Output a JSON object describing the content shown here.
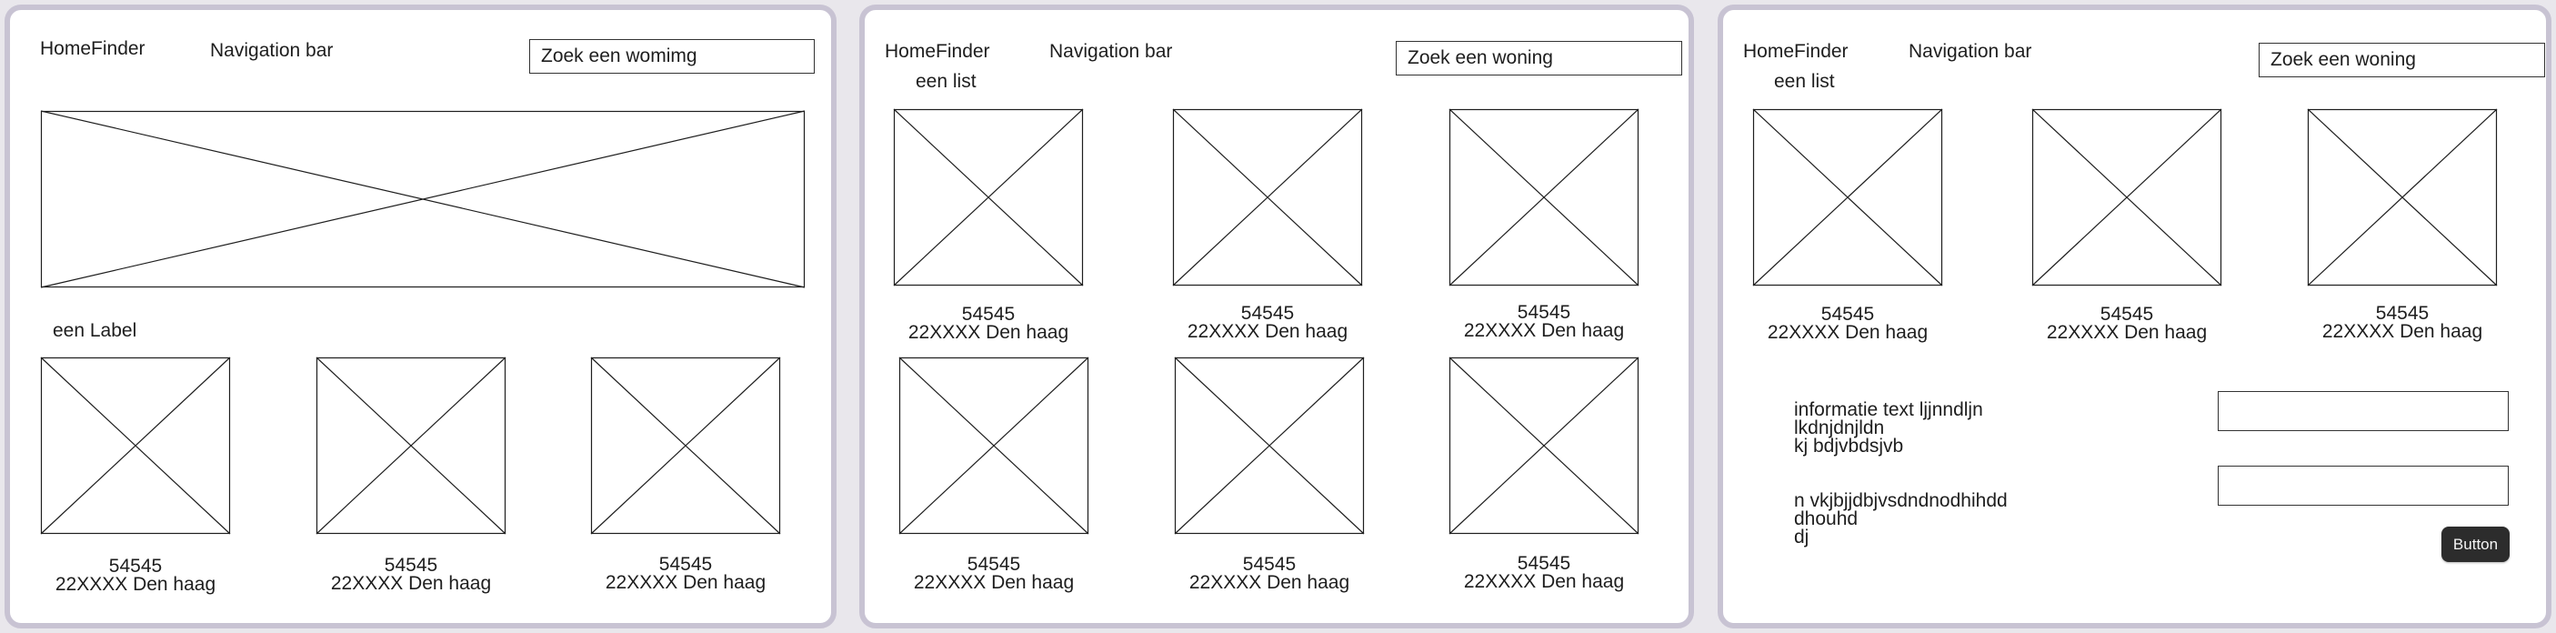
{
  "colors": {
    "frame_border": "#c8c3d3",
    "frame_background": "#ffffff",
    "page_background": "#e9e7ec",
    "button_background": "#2c2c2c",
    "line": "#1e1e1e"
  },
  "screen1": {
    "logo": "HomeFinder",
    "nav": "Navigation bar",
    "search_value": "Zoek een womimg",
    "hero_icon": "image-placeholder-icon",
    "section_label": "een Label",
    "cards": [
      {
        "code": "54545",
        "address": "22XXXX Den haag"
      },
      {
        "code": "54545",
        "address": "22XXXX Den haag"
      },
      {
        "code": "54545",
        "address": "22XXXX Den haag"
      }
    ]
  },
  "screen2": {
    "logo": "HomeFinder",
    "nav": "Navigation bar",
    "search_value": "Zoek een woning",
    "list_label": "een list",
    "cards": [
      {
        "code": "54545",
        "address": "22XXXX Den haag"
      },
      {
        "code": "54545",
        "address": "22XXXX Den haag"
      },
      {
        "code": "54545",
        "address": "22XXXX Den haag"
      },
      {
        "code": "54545",
        "address": "22XXXX Den haag"
      },
      {
        "code": "54545",
        "address": "22XXXX Den haag"
      },
      {
        "code": "54545",
        "address": "22XXXX Den haag"
      }
    ]
  },
  "screen3": {
    "logo": "HomeFinder",
    "nav": "Navigation bar",
    "search_value": "Zoek een woning",
    "list_label": "een list",
    "cards": [
      {
        "code": "54545",
        "address": "22XXXX Den haag"
      },
      {
        "code": "54545",
        "address": "22XXXX Den haag"
      },
      {
        "code": "54545",
        "address": "22XXXX Den haag"
      }
    ],
    "info_text_1": [
      "informatie text ljjnndljn",
      "lkdnjdnjldn",
      "kj bdjvbdsjvb"
    ],
    "info_text_2": [
      "n vkjbjjdbjvsdndnodhihdd",
      "dhouhd",
      "dj"
    ],
    "input_1_value": "",
    "input_2_value": "",
    "button_label": "Button"
  }
}
